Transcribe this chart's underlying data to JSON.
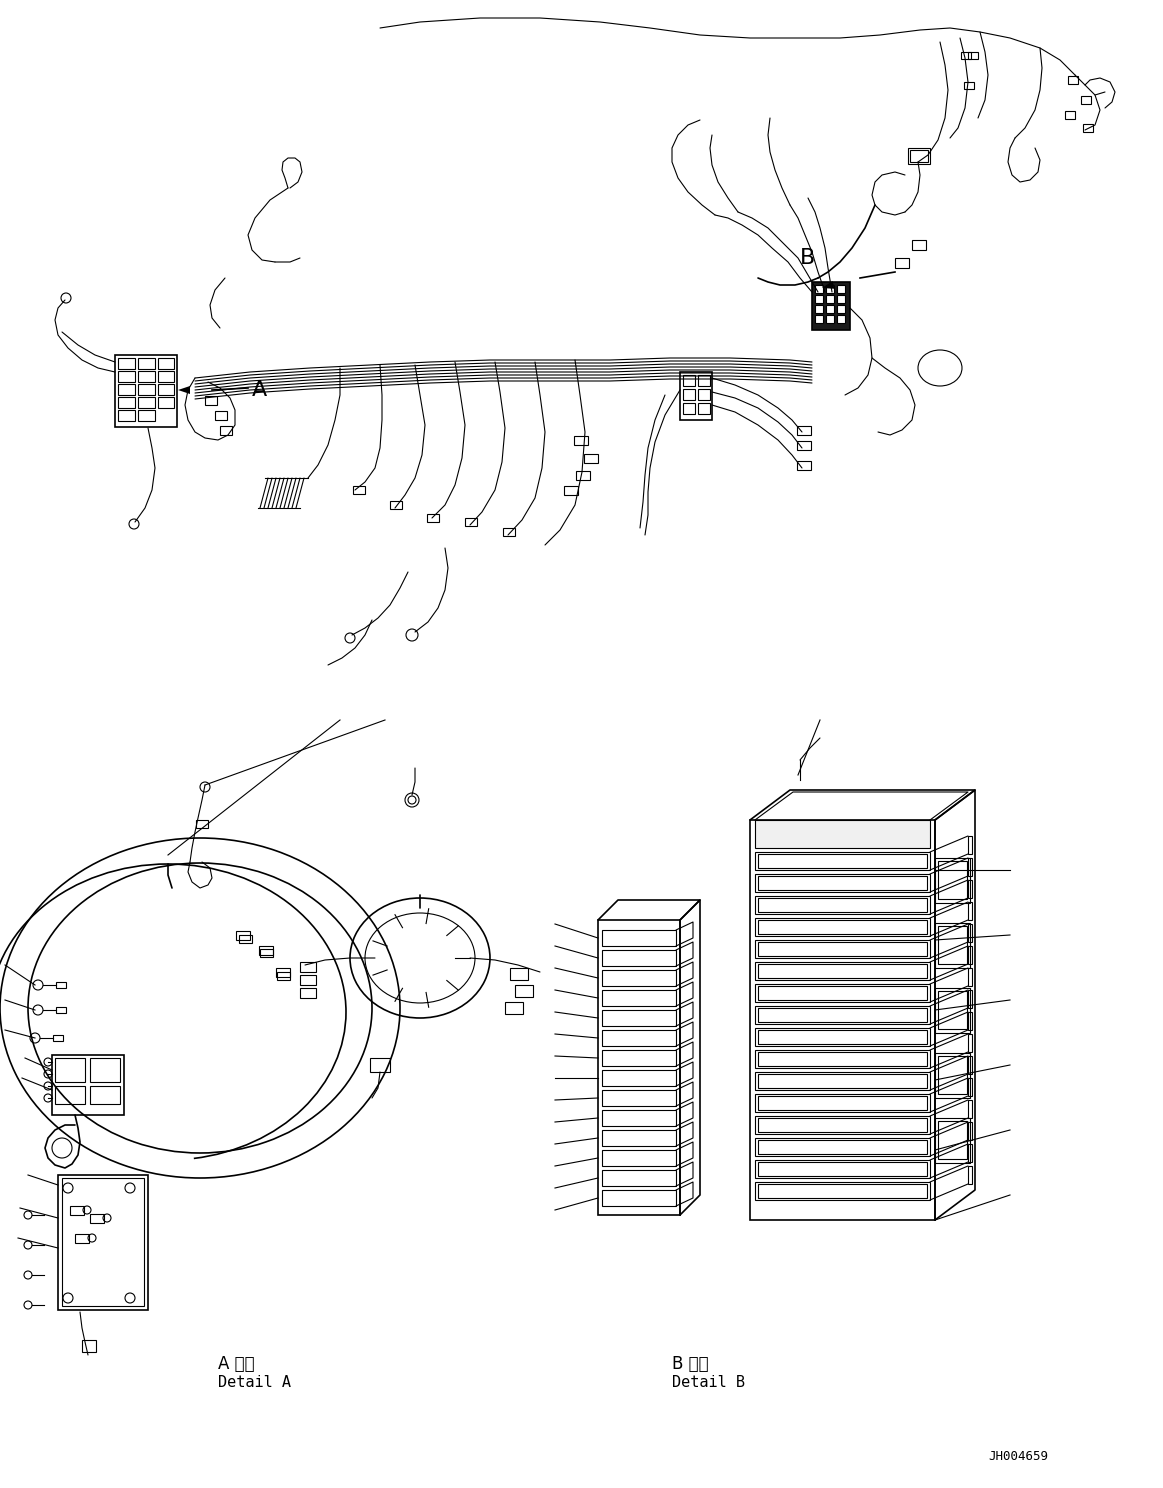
{
  "background_color": "#ffffff",
  "line_color": "#000000",
  "figsize": [
    11.63,
    14.88
  ],
  "dpi": 100,
  "label_A": "A",
  "label_B": "B",
  "detail_A_jp": "A 詳細",
  "detail_A_en": "Detail A",
  "detail_B_jp": "B 詳細",
  "detail_B_en": "Detail B",
  "part_number": "JH004659"
}
